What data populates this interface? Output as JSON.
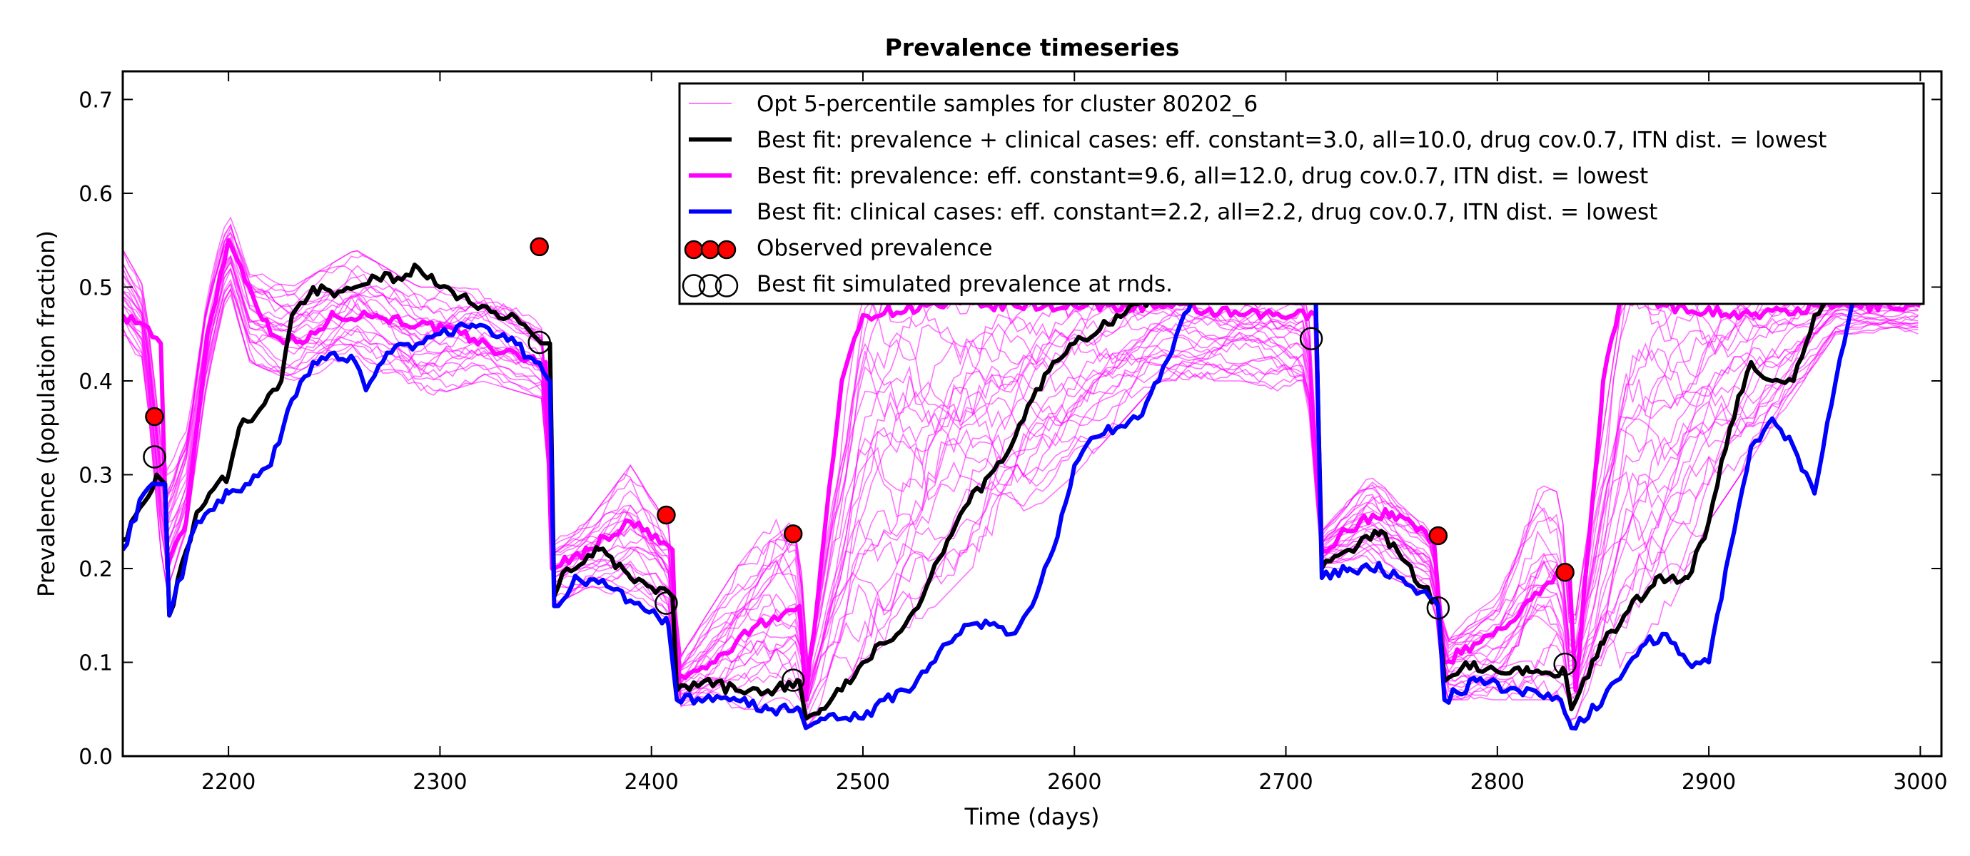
{
  "chart_data": {
    "type": "line",
    "title": "Prevalence timeseries",
    "xlabel": "Time (days)",
    "ylabel": "Prevalence (population fraction)",
    "xlim": [
      2150,
      3010
    ],
    "ylim": [
      0.0,
      0.73
    ],
    "x_ticks": [
      2200,
      2300,
      2400,
      2500,
      2600,
      2700,
      2800,
      2900,
      3000
    ],
    "y_ticks": [
      "0.0",
      "0.1",
      "0.2",
      "0.3",
      "0.4",
      "0.5",
      "0.6",
      "0.7"
    ],
    "grid": false,
    "legend_position": "top-right",
    "series": [
      {
        "name": "Opt 5-percentile samples for cluster 80202_6",
        "color": "#ff00ff",
        "style": "thin-band",
        "lower": [
          [
            2150,
            0.44
          ],
          [
            2160,
            0.42
          ],
          [
            2170,
            0.17
          ],
          [
            2180,
            0.24
          ],
          [
            2190,
            0.4
          ],
          [
            2200,
            0.5
          ],
          [
            2210,
            0.42
          ],
          [
            2230,
            0.4
          ],
          [
            2260,
            0.42
          ],
          [
            2290,
            0.38
          ],
          [
            2320,
            0.4
          ],
          [
            2350,
            0.38
          ],
          [
            2353,
            0.16
          ],
          [
            2370,
            0.18
          ],
          [
            2400,
            0.16
          ],
          [
            2410,
            0.14
          ],
          [
            2412,
            0.05
          ],
          [
            2440,
            0.05
          ],
          [
            2470,
            0.05
          ],
          [
            2473,
            0.03
          ],
          [
            2500,
            0.1
          ],
          [
            2530,
            0.15
          ],
          [
            2560,
            0.22
          ],
          [
            2600,
            0.3
          ],
          [
            2640,
            0.4
          ],
          [
            2680,
            0.4
          ],
          [
            2710,
            0.38
          ],
          [
            2717,
            0.2
          ],
          [
            2740,
            0.2
          ],
          [
            2770,
            0.17
          ],
          [
            2775,
            0.06
          ],
          [
            2800,
            0.06
          ],
          [
            2830,
            0.06
          ],
          [
            2835,
            0.03
          ],
          [
            2860,
            0.1
          ],
          [
            2880,
            0.15
          ],
          [
            2900,
            0.25
          ],
          [
            2930,
            0.35
          ],
          [
            2960,
            0.45
          ],
          [
            3000,
            0.45
          ]
        ],
        "upper": [
          [
            2150,
            0.54
          ],
          [
            2160,
            0.5
          ],
          [
            2170,
            0.3
          ],
          [
            2180,
            0.35
          ],
          [
            2190,
            0.5
          ],
          [
            2200,
            0.58
          ],
          [
            2210,
            0.52
          ],
          [
            2230,
            0.5
          ],
          [
            2260,
            0.54
          ],
          [
            2290,
            0.5
          ],
          [
            2320,
            0.5
          ],
          [
            2350,
            0.46
          ],
          [
            2353,
            0.23
          ],
          [
            2370,
            0.25
          ],
          [
            2390,
            0.31
          ],
          [
            2410,
            0.24
          ],
          [
            2412,
            0.1
          ],
          [
            2440,
            0.2
          ],
          [
            2460,
            0.26
          ],
          [
            2470,
            0.26
          ],
          [
            2473,
            0.09
          ],
          [
            2500,
            0.5
          ],
          [
            2530,
            0.5
          ],
          [
            2560,
            0.5
          ],
          [
            2600,
            0.5
          ],
          [
            2640,
            0.5
          ],
          [
            2680,
            0.5
          ],
          [
            2710,
            0.5
          ],
          [
            2717,
            0.24
          ],
          [
            2740,
            0.3
          ],
          [
            2770,
            0.24
          ],
          [
            2775,
            0.13
          ],
          [
            2800,
            0.17
          ],
          [
            2820,
            0.29
          ],
          [
            2830,
            0.28
          ],
          [
            2835,
            0.12
          ],
          [
            2860,
            0.5
          ],
          [
            2880,
            0.5
          ],
          [
            2900,
            0.5
          ],
          [
            2930,
            0.5
          ],
          [
            2960,
            0.5
          ],
          [
            3000,
            0.5
          ]
        ]
      },
      {
        "name": "Best fit: prevalence + clinical cases: eff. constant=3.0, all=10.0, drug cov.0.7, ITN dist. = lowest",
        "color": "#000000",
        "points": [
          [
            2150,
            0.23
          ],
          [
            2160,
            0.27
          ],
          [
            2166,
            0.3
          ],
          [
            2170,
            0.29
          ],
          [
            2172,
            0.15
          ],
          [
            2185,
            0.26
          ],
          [
            2200,
            0.3
          ],
          [
            2205,
            0.35
          ],
          [
            2215,
            0.37
          ],
          [
            2225,
            0.4
          ],
          [
            2230,
            0.47
          ],
          [
            2240,
            0.5
          ],
          [
            2250,
            0.49
          ],
          [
            2260,
            0.5
          ],
          [
            2270,
            0.51
          ],
          [
            2280,
            0.51
          ],
          [
            2290,
            0.52
          ],
          [
            2300,
            0.5
          ],
          [
            2310,
            0.49
          ],
          [
            2320,
            0.48
          ],
          [
            2340,
            0.46
          ],
          [
            2348,
            0.44
          ],
          [
            2352,
            0.44
          ],
          [
            2354,
            0.17
          ],
          [
            2360,
            0.2
          ],
          [
            2375,
            0.22
          ],
          [
            2390,
            0.19
          ],
          [
            2400,
            0.18
          ],
          [
            2410,
            0.17
          ],
          [
            2412,
            0.07
          ],
          [
            2425,
            0.08
          ],
          [
            2440,
            0.07
          ],
          [
            2455,
            0.07
          ],
          [
            2470,
            0.08
          ],
          [
            2473,
            0.04
          ],
          [
            2480,
            0.05
          ],
          [
            2490,
            0.07
          ],
          [
            2500,
            0.1
          ],
          [
            2510,
            0.12
          ],
          [
            2520,
            0.14
          ],
          [
            2530,
            0.18
          ],
          [
            2540,
            0.23
          ],
          [
            2550,
            0.27
          ],
          [
            2560,
            0.3
          ],
          [
            2570,
            0.33
          ],
          [
            2580,
            0.38
          ],
          [
            2590,
            0.42
          ],
          [
            2600,
            0.44
          ],
          [
            2610,
            0.45
          ],
          [
            2620,
            0.47
          ],
          [
            2640,
            0.49
          ],
          [
            2660,
            0.5
          ],
          [
            2680,
            0.5
          ],
          [
            2700,
            0.5
          ],
          [
            2714,
            0.5
          ],
          [
            2717,
            0.2
          ],
          [
            2730,
            0.22
          ],
          [
            2745,
            0.24
          ],
          [
            2755,
            0.21
          ],
          [
            2765,
            0.18
          ],
          [
            2772,
            0.16
          ],
          [
            2775,
            0.08
          ],
          [
            2785,
            0.1
          ],
          [
            2800,
            0.09
          ],
          [
            2815,
            0.09
          ],
          [
            2832,
            0.09
          ],
          [
            2835,
            0.05
          ],
          [
            2850,
            0.12
          ],
          [
            2860,
            0.15
          ],
          [
            2875,
            0.19
          ],
          [
            2890,
            0.19
          ],
          [
            2900,
            0.25
          ],
          [
            2910,
            0.35
          ],
          [
            2920,
            0.42
          ],
          [
            2930,
            0.4
          ],
          [
            2940,
            0.4
          ],
          [
            2950,
            0.47
          ],
          [
            2960,
            0.5
          ],
          [
            3000,
            0.5
          ]
        ]
      },
      {
        "name": "Best fit: prevalence: eff. constant=9.6, all=12.0, drug cov.0.7, ITN dist. = lowest",
        "color": "#ff00ff",
        "points": [
          [
            2150,
            0.47
          ],
          [
            2160,
            0.46
          ],
          [
            2168,
            0.44
          ],
          [
            2171,
            0.2
          ],
          [
            2180,
            0.25
          ],
          [
            2190,
            0.45
          ],
          [
            2200,
            0.55
          ],
          [
            2210,
            0.5
          ],
          [
            2220,
            0.45
          ],
          [
            2235,
            0.44
          ],
          [
            2250,
            0.47
          ],
          [
            2270,
            0.47
          ],
          [
            2290,
            0.46
          ],
          [
            2310,
            0.45
          ],
          [
            2330,
            0.43
          ],
          [
            2350,
            0.42
          ],
          [
            2353,
            0.2
          ],
          [
            2370,
            0.22
          ],
          [
            2390,
            0.25
          ],
          [
            2410,
            0.22
          ],
          [
            2412,
            0.08
          ],
          [
            2430,
            0.1
          ],
          [
            2450,
            0.14
          ],
          [
            2470,
            0.16
          ],
          [
            2473,
            0.06
          ],
          [
            2480,
            0.2
          ],
          [
            2490,
            0.4
          ],
          [
            2500,
            0.47
          ],
          [
            2530,
            0.48
          ],
          [
            2560,
            0.48
          ],
          [
            2600,
            0.48
          ],
          [
            2640,
            0.48
          ],
          [
            2680,
            0.47
          ],
          [
            2714,
            0.47
          ],
          [
            2717,
            0.22
          ],
          [
            2735,
            0.25
          ],
          [
            2750,
            0.26
          ],
          [
            2770,
            0.23
          ],
          [
            2775,
            0.1
          ],
          [
            2790,
            0.12
          ],
          [
            2810,
            0.15
          ],
          [
            2830,
            0.2
          ],
          [
            2834,
            0.2
          ],
          [
            2837,
            0.07
          ],
          [
            2850,
            0.4
          ],
          [
            2860,
            0.5
          ],
          [
            2880,
            0.48
          ],
          [
            2920,
            0.47
          ],
          [
            2960,
            0.48
          ],
          [
            3000,
            0.48
          ]
        ]
      },
      {
        "name": "Best fit: clinical cases: eff. constant=2.2, all=2.2, drug cov.0.7, ITN dist. = lowest",
        "color": "#0000ff",
        "points": [
          [
            2150,
            0.22
          ],
          [
            2160,
            0.28
          ],
          [
            2166,
            0.29
          ],
          [
            2170,
            0.29
          ],
          [
            2172,
            0.15
          ],
          [
            2185,
            0.25
          ],
          [
            2200,
            0.28
          ],
          [
            2210,
            0.29
          ],
          [
            2220,
            0.31
          ],
          [
            2230,
            0.38
          ],
          [
            2240,
            0.42
          ],
          [
            2250,
            0.43
          ],
          [
            2260,
            0.42
          ],
          [
            2265,
            0.39
          ],
          [
            2275,
            0.43
          ],
          [
            2290,
            0.44
          ],
          [
            2300,
            0.45
          ],
          [
            2315,
            0.46
          ],
          [
            2330,
            0.45
          ],
          [
            2345,
            0.42
          ],
          [
            2352,
            0.4
          ],
          [
            2354,
            0.16
          ],
          [
            2365,
            0.19
          ],
          [
            2380,
            0.18
          ],
          [
            2395,
            0.16
          ],
          [
            2408,
            0.14
          ],
          [
            2412,
            0.06
          ],
          [
            2425,
            0.06
          ],
          [
            2440,
            0.06
          ],
          [
            2455,
            0.05
          ],
          [
            2470,
            0.05
          ],
          [
            2473,
            0.03
          ],
          [
            2480,
            0.04
          ],
          [
            2490,
            0.04
          ],
          [
            2500,
            0.04
          ],
          [
            2510,
            0.06
          ],
          [
            2520,
            0.07
          ],
          [
            2530,
            0.09
          ],
          [
            2540,
            0.12
          ],
          [
            2550,
            0.14
          ],
          [
            2560,
            0.14
          ],
          [
            2570,
            0.13
          ],
          [
            2580,
            0.16
          ],
          [
            2590,
            0.22
          ],
          [
            2600,
            0.31
          ],
          [
            2610,
            0.34
          ],
          [
            2620,
            0.35
          ],
          [
            2630,
            0.36
          ],
          [
            2640,
            0.4
          ],
          [
            2650,
            0.46
          ],
          [
            2660,
            0.5
          ],
          [
            2714,
            0.5
          ],
          [
            2717,
            0.19
          ],
          [
            2730,
            0.2
          ],
          [
            2745,
            0.2
          ],
          [
            2760,
            0.18
          ],
          [
            2772,
            0.16
          ],
          [
            2775,
            0.06
          ],
          [
            2790,
            0.08
          ],
          [
            2810,
            0.07
          ],
          [
            2830,
            0.06
          ],
          [
            2835,
            0.03
          ],
          [
            2850,
            0.06
          ],
          [
            2860,
            0.09
          ],
          [
            2870,
            0.12
          ],
          [
            2880,
            0.13
          ],
          [
            2890,
            0.1
          ],
          [
            2900,
            0.1
          ],
          [
            2910,
            0.22
          ],
          [
            2920,
            0.33
          ],
          [
            2930,
            0.36
          ],
          [
            2940,
            0.33
          ],
          [
            2950,
            0.28
          ],
          [
            2960,
            0.4
          ],
          [
            2970,
            0.5
          ],
          [
            3000,
            0.5
          ]
        ]
      },
      {
        "name": "Observed prevalence",
        "color": "#ff0000",
        "marker": "filled-circle",
        "points": [
          [
            2165,
            0.362
          ],
          [
            2347,
            0.543
          ],
          [
            2407,
            0.257
          ],
          [
            2467,
            0.237
          ],
          [
            2712,
            0.509
          ],
          [
            2772,
            0.235
          ],
          [
            2832,
            0.196
          ]
        ]
      },
      {
        "name": "Best fit simulated prevalence at rnds.",
        "color": "#000000",
        "marker": "open-circle",
        "points": [
          [
            2165,
            0.319
          ],
          [
            2347,
            0.441
          ],
          [
            2407,
            0.163
          ],
          [
            2467,
            0.081
          ],
          [
            2712,
            0.445
          ],
          [
            2772,
            0.158
          ],
          [
            2832,
            0.098
          ]
        ]
      }
    ]
  }
}
